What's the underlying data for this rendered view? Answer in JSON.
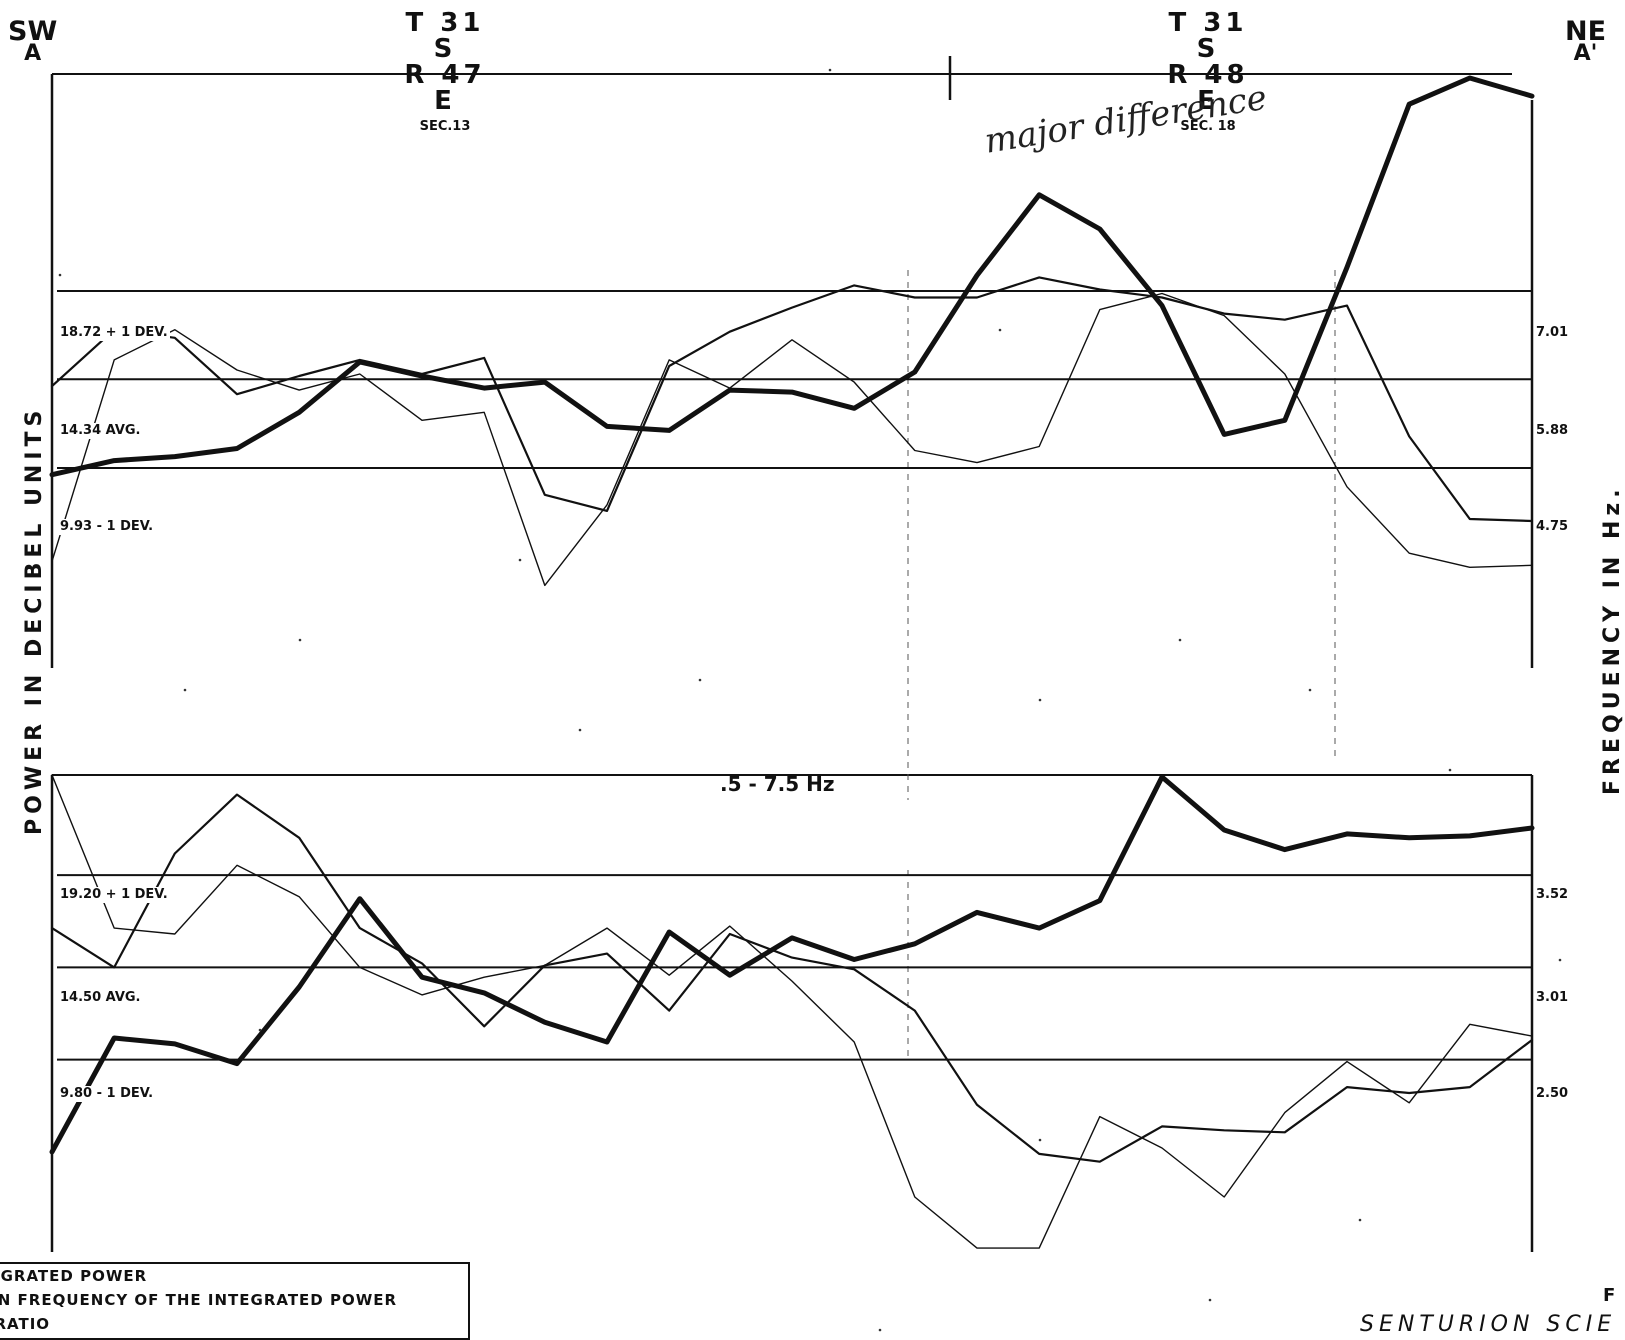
{
  "header": {
    "left_corner": {
      "dir": "SW",
      "point": "A"
    },
    "right_corner": {
      "dir": "NE",
      "point": "A'"
    },
    "township_left": {
      "line1": "T 31 S",
      "line2": "R 47 E",
      "sec": "SEC.13"
    },
    "township_right": {
      "line1": "T 31 S",
      "line2": "R 48 E",
      "sec": "SEC. 18"
    }
  },
  "annotation": "major difference",
  "axis_left_label": "POWER IN DECIBEL UNITS",
  "axis_right_label": "FREQUENCY IN Hz.",
  "band_label": ".5 - 7.5 Hz",
  "legend": {
    "items": [
      "INTEGRATED POWER",
      "MEAN FREQUENCY OF THE INTEGRATED POWER",
      "S/P RATIO"
    ]
  },
  "footer_text": "SENTURION SCIE",
  "fig_label": "F",
  "chart_data": [
    {
      "type": "line",
      "panel": "upper",
      "reference_levels": {
        "power_left": [
          {
            "label": "18.72 + 1 DEV.",
            "value": 18.72
          },
          {
            "label": "14.34 AVG.",
            "value": 14.34
          },
          {
            "label": "9.93 - 1 DEV.",
            "value": 9.93
          }
        ],
        "frequency_right": [
          {
            "label": "7.01",
            "value": 7.01
          },
          {
            "label": "5.88",
            "value": 5.88
          },
          {
            "label": "4.75",
            "value": 4.75
          }
        ]
      },
      "ylim_power": [
        0,
        29.5
      ],
      "x": [
        0,
        0.042,
        0.083,
        0.125,
        0.167,
        0.208,
        0.25,
        0.292,
        0.333,
        0.375,
        0.417,
        0.458,
        0.5,
        0.542,
        0.583,
        0.625,
        0.667,
        0.708,
        0.75,
        0.792,
        0.833,
        0.875,
        0.917,
        0.958,
        1.0
      ],
      "series": [
        {
          "name": "INTEGRATED POWER",
          "style": "thick",
          "values": [
            9.6,
            10.3,
            10.5,
            10.9,
            12.7,
            15.2,
            14.5,
            13.9,
            14.2,
            12.0,
            11.8,
            13.8,
            13.7,
            12.9,
            14.7,
            19.5,
            23.5,
            21.8,
            18.0,
            11.6,
            12.3,
            19.9,
            28.0,
            29.3,
            28.4
          ]
        },
        {
          "name": "MEAN FREQUENCY OF THE INTEGRATED POWER",
          "style": "medium",
          "values": [
            14.0,
            16.8,
            16.4,
            13.6,
            14.5,
            15.3,
            14.6,
            15.4,
            8.6,
            7.8,
            15.0,
            16.7,
            17.9,
            19.0,
            18.4,
            18.4,
            19.4,
            18.8,
            18.4,
            17.6,
            17.3,
            18.0,
            11.5,
            7.4,
            7.3
          ]
        },
        {
          "name": "S/P RATIO",
          "style": "thin",
          "values": [
            5.3,
            15.3,
            16.8,
            14.8,
            13.8,
            14.6,
            12.3,
            12.7,
            4.1,
            8.1,
            15.3,
            13.9,
            16.3,
            14.2,
            10.8,
            10.2,
            11.0,
            17.8,
            18.6,
            17.5,
            14.6,
            9.0,
            5.7,
            5.0,
            5.1
          ]
        }
      ]
    },
    {
      "type": "line",
      "panel": "lower",
      "reference_levels": {
        "power_left": [
          {
            "label": "19.20 + 1 DEV.",
            "value": 19.2
          },
          {
            "label": "14.50 AVG.",
            "value": 14.5
          },
          {
            "label": "9.80 - 1 DEV.",
            "value": 9.8
          }
        ],
        "frequency_right": [
          {
            "label": "3.52",
            "value": 3.52
          },
          {
            "label": "3.01",
            "value": 3.01
          },
          {
            "label": "2.50",
            "value": 2.5
          }
        ]
      },
      "ylim_power": [
        0,
        24.3
      ],
      "x": [
        0,
        0.042,
        0.083,
        0.125,
        0.167,
        0.208,
        0.25,
        0.292,
        0.333,
        0.375,
        0.417,
        0.458,
        0.5,
        0.542,
        0.583,
        0.625,
        0.667,
        0.708,
        0.75,
        0.792,
        0.833,
        0.875,
        0.917,
        0.958,
        1.0
      ],
      "series": [
        {
          "name": "INTEGRATED POWER",
          "style": "thick",
          "values": [
            5.1,
            10.9,
            10.6,
            9.6,
            13.5,
            18.0,
            14.0,
            13.2,
            11.7,
            10.7,
            16.3,
            14.1,
            16.0,
            14.9,
            15.7,
            17.3,
            16.5,
            17.9,
            24.2,
            21.5,
            20.5,
            21.3,
            21.1,
            21.2,
            21.6
          ]
        },
        {
          "name": "MEAN FREQUENCY OF THE INTEGRATED POWER",
          "style": "medium",
          "values": [
            16.5,
            14.5,
            20.3,
            23.3,
            21.1,
            16.5,
            14.7,
            11.5,
            14.6,
            15.2,
            12.3,
            16.2,
            15.0,
            14.4,
            12.3,
            7.5,
            5.0,
            4.6,
            6.4,
            6.2,
            6.1,
            8.4,
            8.1,
            8.4,
            10.8
          ]
        },
        {
          "name": "S/P RATIO",
          "style": "thin",
          "values": [
            24.3,
            16.5,
            16.2,
            19.7,
            18.1,
            14.5,
            13.1,
            14.0,
            14.6,
            16.5,
            14.1,
            16.6,
            13.8,
            10.7,
            2.8,
            0.2,
            0.2,
            6.9,
            5.3,
            2.8,
            7.1,
            9.7,
            7.6,
            11.6,
            11.0
          ]
        }
      ]
    }
  ]
}
